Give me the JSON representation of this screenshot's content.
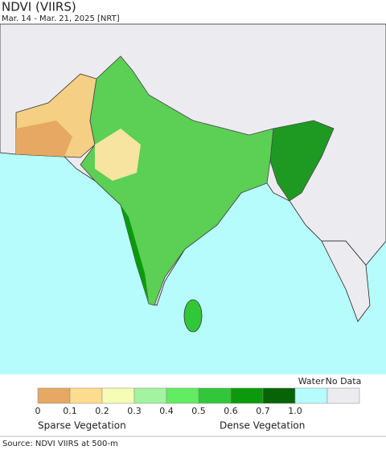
{
  "header": {
    "title": "NDVI (VIIRS)",
    "subtitle": "Mar. 14 - Mar. 21, 2025 [NRT]"
  },
  "legend": {
    "colors": [
      "#e6a862",
      "#fcdc8e",
      "#f6fcb4",
      "#a2f4a0",
      "#62ec62",
      "#32c63a",
      "#0c9a0c",
      "#066406"
    ],
    "tick_labels": [
      "0",
      "0.1",
      "0.2",
      "0.3",
      "0.4",
      "0.5",
      "0.6",
      "0.7",
      "1.0"
    ],
    "extra": [
      {
        "label": "Water",
        "color": "#b6fcfc"
      },
      {
        "label": "No Data",
        "color": "#ecebf0"
      }
    ],
    "low_label": "Sparse Vegetation",
    "high_label": "Dense Vegetation"
  },
  "footer": {
    "source": "Source: NDVI VIIRS at 500-m"
  }
}
